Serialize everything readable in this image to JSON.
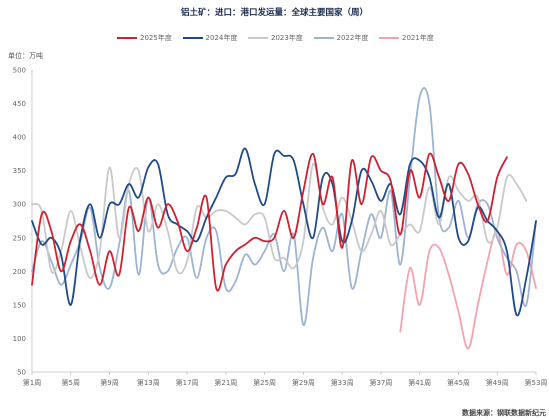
{
  "chart_data": {
    "type": "line",
    "title": "铝土矿：进口：港口发运量：全球主要国家（周）",
    "ylabel": "单位：万吨",
    "source": "数据来源：钢联数据新纪元",
    "legend": "top",
    "grid": false,
    "ylim": [
      50,
      500
    ],
    "y_ticks": [
      500,
      450,
      400,
      350,
      300,
      250,
      200,
      150,
      100,
      50
    ],
    "xlim": [
      1,
      53
    ],
    "x_ticks": [
      {
        "x": 1,
        "label": "第1周"
      },
      {
        "x": 5,
        "label": "第5周"
      },
      {
        "x": 9,
        "label": "第9周"
      },
      {
        "x": 13,
        "label": "第13周"
      },
      {
        "x": 17,
        "label": "第17周"
      },
      {
        "x": 21,
        "label": "第21周"
      },
      {
        "x": 25,
        "label": "第25周"
      },
      {
        "x": 29,
        "label": "第29周"
      },
      {
        "x": 33,
        "label": "第33周"
      },
      {
        "x": 37,
        "label": "第37周"
      },
      {
        "x": 41,
        "label": "第41周"
      },
      {
        "x": 45,
        "label": "第45周"
      },
      {
        "x": 49,
        "label": "第49周"
      },
      {
        "x": 53,
        "label": "第53周"
      }
    ],
    "x": [
      1,
      2,
      3,
      4,
      5,
      6,
      7,
      8,
      9,
      10,
      11,
      12,
      13,
      14,
      15,
      16,
      17,
      18,
      19,
      20,
      21,
      22,
      23,
      24,
      25,
      26,
      27,
      28,
      29,
      30,
      31,
      32,
      33,
      34,
      35,
      36,
      37,
      38,
      39,
      40,
      41,
      42,
      43,
      44,
      45,
      46,
      47,
      48,
      49,
      50,
      51,
      52,
      53
    ],
    "series": [
      {
        "name": "2025年度",
        "color": "#d0202e",
        "values": [
          180,
          285,
          260,
          200,
          245,
          270,
          230,
          180,
          230,
          195,
          295,
          260,
          310,
          265,
          300,
          275,
          230,
          265,
          310,
          175,
          210,
          230,
          240,
          250,
          245,
          250,
          290,
          250,
          320,
          375,
          300,
          340,
          235,
          365,
          300,
          370,
          350,
          335,
          255,
          350,
          310,
          375,
          340,
          305,
          360,
          345,
          300,
          275,
          340,
          370,
          null,
          null,
          null
        ]
      },
      {
        "name": "2024年度",
        "color": "#1f4a8a",
        "values": [
          275,
          240,
          250,
          225,
          150,
          250,
          300,
          250,
          300,
          300,
          330,
          310,
          355,
          360,
          285,
          270,
          260,
          245,
          280,
          310,
          340,
          345,
          383,
          330,
          300,
          375,
          372,
          365,
          300,
          250,
          340,
          330,
          245,
          275,
          350,
          335,
          305,
          330,
          285,
          360,
          365,
          340,
          280,
          330,
          250,
          245,
          295,
          275,
          260,
          230,
          135,
          190,
          275
        ]
      },
      {
        "name": "2023年度",
        "color": "#c9c9c9",
        "values": [
          300,
          290,
          200,
          230,
          290,
          235,
          190,
          230,
          355,
          250,
          330,
          350,
          260,
          300,
          260,
          200,
          215,
          295,
          280,
          290,
          290,
          280,
          270,
          285,
          280,
          220,
          220,
          205,
          245,
          360,
          295,
          270,
          310,
          275,
          230,
          255,
          290,
          240,
          255,
          270,
          260,
          325,
          270,
          340,
          320,
          305,
          310,
          245,
          265,
          340,
          330,
          305,
          null
        ]
      },
      {
        "name": "2022年度",
        "color": "#9db3d4",
        "values": [
          200,
          245,
          215,
          180,
          210,
          245,
          295,
          205,
          175,
          240,
          320,
          195,
          310,
          210,
          200,
          235,
          250,
          190,
          250,
          260,
          175,
          185,
          225,
          210,
          230,
          255,
          200,
          255,
          120,
          220,
          265,
          230,
          285,
          175,
          230,
          285,
          250,
          320,
          210,
          340,
          460,
          450,
          280,
          265,
          305,
          250,
          300,
          300,
          250,
          220,
          200,
          150,
          275
        ]
      },
      {
        "name": "2021年度",
        "color": "#f4a3ac",
        "values": [
          null,
          null,
          null,
          null,
          null,
          null,
          null,
          null,
          null,
          null,
          null,
          null,
          null,
          null,
          null,
          null,
          null,
          null,
          null,
          null,
          null,
          null,
          null,
          null,
          null,
          null,
          null,
          null,
          null,
          null,
          null,
          null,
          null,
          null,
          null,
          null,
          null,
          null,
          110,
          205,
          150,
          230,
          235,
          195,
          140,
          85,
          150,
          215,
          260,
          195,
          240,
          230,
          175
        ]
      }
    ]
  }
}
